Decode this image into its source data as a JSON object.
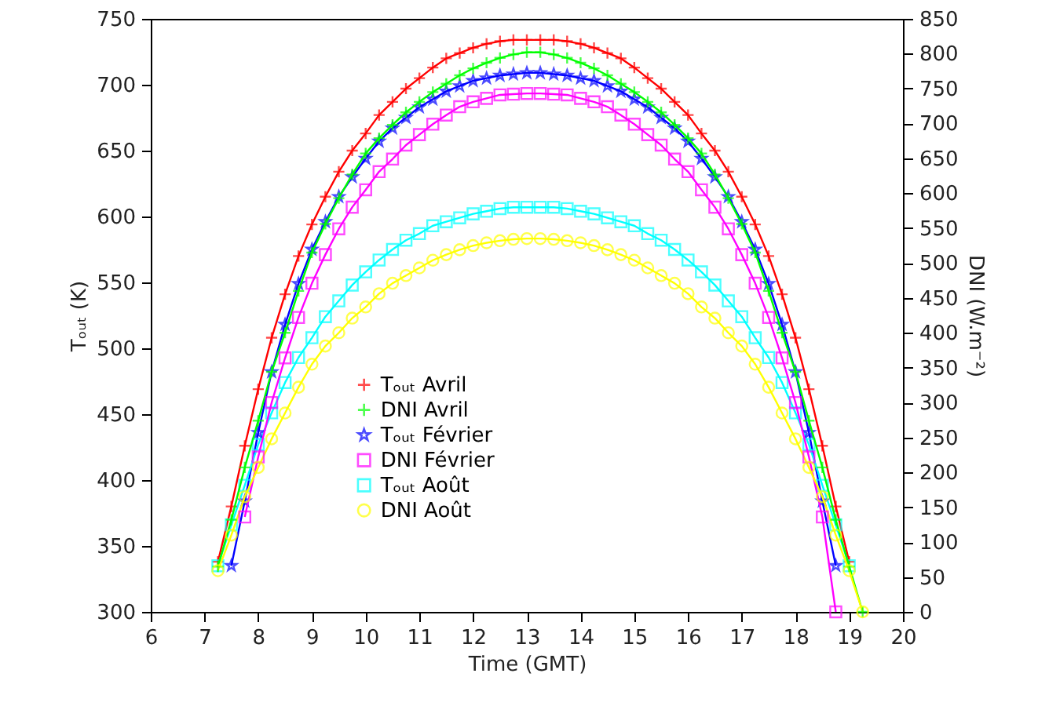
{
  "chart_data": {
    "type": "line",
    "xlabel": "Time (GMT)",
    "ylabel": "Tₒᵤₜ (K)",
    "y2label": "DNI (W.m⁻²)",
    "x": [
      7.25,
      7.5,
      7.75,
      8,
      8.25,
      8.5,
      8.75,
      9,
      9.25,
      9.5,
      9.75,
      10,
      10.25,
      10.5,
      10.75,
      11,
      11.25,
      11.5,
      11.75,
      12,
      12.25,
      12.5,
      12.75,
      13,
      13.25,
      13.5,
      13.75,
      14,
      14.25,
      14.5,
      14.75,
      15,
      15.25,
      15.5,
      15.75,
      16,
      16.25,
      16.5,
      16.75,
      17,
      17.25,
      17.5,
      17.75,
      18,
      18.25,
      18.5,
      18.75,
      19,
      19.25
    ],
    "series": [
      {
        "name": "Tₒᵤₜ Avril",
        "color": "#ff0000",
        "marker": "cross",
        "values": [
          338,
          380,
          426,
          469,
          508,
          541,
          570,
          594,
          615,
          634,
          650,
          663,
          677,
          687,
          697,
          705,
          713,
          720,
          724,
          728,
          731,
          733,
          734,
          734,
          734,
          734,
          733,
          731,
          728,
          724,
          720,
          713,
          705,
          697,
          687,
          677,
          663,
          650,
          634,
          615,
          594,
          570,
          541,
          508,
          469,
          426,
          380,
          338,
          null
        ]
      },
      {
        "name": "DNI Avril",
        "color": "#00ff00",
        "marker": "cross",
        "axis": "y2",
        "values": [
          65,
          132,
          207,
          274,
          344,
          400,
          460,
          515,
          556,
          593,
          627,
          657,
          679,
          698,
          716,
          731,
          745,
          757,
          769,
          779,
          787,
          794,
          799,
          802,
          802,
          799,
          794,
          787,
          779,
          769,
          757,
          745,
          731,
          716,
          698,
          679,
          657,
          627,
          593,
          556,
          515,
          460,
          400,
          344,
          274,
          207,
          132,
          65,
          0
        ]
      },
      {
        "name": "Tₒᵤₜ Février",
        "color": "#0000ff",
        "marker": "star",
        "values": [
          null,
          335,
          384,
          436,
          482,
          518,
          549,
          575,
          596,
          615,
          630,
          644,
          657,
          667,
          675,
          683,
          689,
          695,
          699,
          703,
          705,
          707,
          708,
          709,
          709,
          708,
          707,
          705,
          703,
          699,
          695,
          689,
          683,
          675,
          667,
          657,
          644,
          630,
          615,
          596,
          575,
          549,
          518,
          482,
          436,
          384,
          335,
          null,
          null
        ]
      },
      {
        "name": "DNI Février",
        "color": "#ff00ff",
        "marker": "square",
        "axis": "y2",
        "values": [
          null,
          null,
          136,
          222,
          300,
          364,
          422,
          471,
          512,
          549,
          580,
          605,
          631,
          649,
          669,
          684,
          699,
          712,
          724,
          731,
          736,
          741,
          742,
          743,
          743,
          742,
          741,
          736,
          731,
          724,
          712,
          699,
          684,
          669,
          649,
          631,
          605,
          580,
          549,
          512,
          471,
          422,
          364,
          300,
          222,
          136,
          0,
          null,
          null
        ]
      },
      {
        "name": "Tₒᵤₜ Août",
        "color": "#00ffff",
        "marker": "square",
        "values": [
          335,
          366,
          396,
          427,
          451,
          474,
          493,
          508,
          524,
          536,
          548,
          558,
          567,
          575,
          582,
          587,
          593,
          596,
          599,
          602,
          604,
          606,
          607,
          607,
          607,
          607,
          606,
          604,
          602,
          599,
          596,
          593,
          587,
          582,
          575,
          567,
          558,
          548,
          536,
          524,
          508,
          493,
          474,
          451,
          427,
          396,
          366,
          335,
          null
        ]
      },
      {
        "name": "DNI Août",
        "color": "#ffff00",
        "marker": "circle",
        "axis": "y2",
        "values": [
          59,
          110,
          165,
          207,
          248,
          285,
          322,
          355,
          381,
          400,
          421,
          437,
          456,
          471,
          482,
          493,
          504,
          512,
          519,
          525,
          529,
          532,
          534,
          535,
          535,
          534,
          532,
          529,
          525,
          519,
          512,
          504,
          493,
          482,
          471,
          456,
          437,
          421,
          400,
          381,
          355,
          322,
          285,
          248,
          207,
          165,
          110,
          59,
          0
        ]
      }
    ],
    "xlim": [
      6,
      20
    ],
    "xticks": [
      6,
      7,
      8,
      9,
      10,
      11,
      12,
      13,
      14,
      15,
      16,
      17,
      18,
      19,
      20
    ],
    "ylim": [
      300,
      750
    ],
    "yticks": [
      300,
      350,
      400,
      450,
      500,
      550,
      600,
      650,
      700,
      750
    ],
    "y2lim": [
      0,
      850
    ],
    "y2ticks": [
      0,
      50,
      100,
      150,
      200,
      250,
      300,
      350,
      400,
      450,
      500,
      550,
      600,
      650,
      700,
      750,
      800,
      850
    ],
    "legend": "bottom",
    "grid": false
  }
}
